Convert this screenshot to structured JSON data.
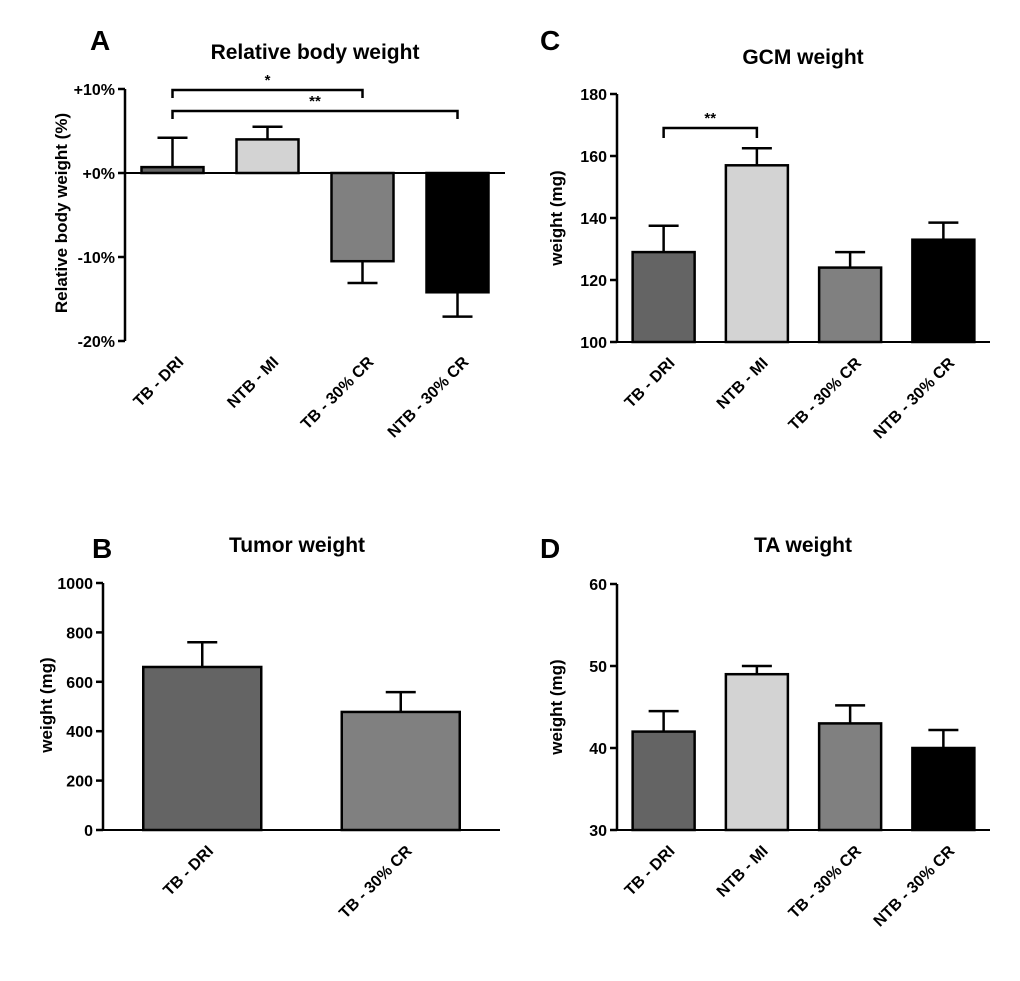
{
  "panels": {
    "A": {
      "panel_letter": "A",
      "title": "Relative body weight",
      "ylabel": "Relative body weight (%)",
      "ticks": [
        {
          "value": 10,
          "label": "+10%"
        },
        {
          "value": 0,
          "label": "+0%"
        },
        {
          "value": -10,
          "label": "-10%"
        },
        {
          "value": -20,
          "label": "-20%"
        }
      ],
      "brackets": [
        {
          "from": 0,
          "to": 2,
          "label": "*"
        },
        {
          "from": 0,
          "to": 3,
          "label": "**"
        }
      ]
    },
    "B": {
      "panel_letter": "B",
      "title": "Tumor weight",
      "ylabel": "weight (mg)",
      "ticks": [
        {
          "value": 1000,
          "label": "1000"
        },
        {
          "value": 800,
          "label": "800"
        },
        {
          "value": 600,
          "label": "600"
        },
        {
          "value": 400,
          "label": "400"
        },
        {
          "value": 200,
          "label": "200"
        },
        {
          "value": 0,
          "label": "0"
        }
      ],
      "brackets": []
    },
    "C": {
      "panel_letter": "C",
      "title": "GCM weight",
      "ylabel": "weight (mg)",
      "ticks": [
        {
          "value": 180,
          "label": "180"
        },
        {
          "value": 160,
          "label": "160"
        },
        {
          "value": 140,
          "label": "140"
        },
        {
          "value": 120,
          "label": "120"
        },
        {
          "value": 100,
          "label": "100"
        }
      ],
      "brackets": [
        {
          "from": 0,
          "to": 1,
          "label": "**"
        }
      ]
    },
    "D": {
      "panel_letter": "D",
      "title": "TA weight",
      "ylabel": "weight (mg)",
      "ticks": [
        {
          "value": 60,
          "label": "60"
        },
        {
          "value": 50,
          "label": "50"
        },
        {
          "value": 40,
          "label": "40"
        },
        {
          "value": 30,
          "label": "30"
        }
      ],
      "brackets": []
    }
  },
  "colors": {
    "TB - DRI": "#646464",
    "NTB - MI": "#d3d3d3",
    "TB - 30% CR": "#808080",
    "NTB - 30% CR": "#000000"
  },
  "chart_data": [
    {
      "panel": "A",
      "type": "bar",
      "title": "Relative body weight",
      "xlabel": "",
      "ylabel": "Relative body weight (%)",
      "ylim": [
        -20,
        10
      ],
      "baseline": 0,
      "categories": [
        "TB - DRI",
        "NTB - MI",
        "TB - 30% CR",
        "NTB - 30% CR"
      ],
      "values": [
        0.7,
        4.0,
        -10.5,
        -14.2
      ],
      "errors": [
        3.5,
        1.5,
        2.6,
        2.9
      ]
    },
    {
      "panel": "B",
      "type": "bar",
      "title": "Tumor weight",
      "xlabel": "",
      "ylabel": "weight (mg)",
      "ylim": [
        0,
        1000
      ],
      "baseline": 0,
      "categories": [
        "TB - DRI",
        "TB - 30% CR"
      ],
      "values": [
        660,
        478
      ],
      "errors": [
        100,
        80
      ]
    },
    {
      "panel": "C",
      "type": "bar",
      "title": "GCM weight",
      "xlabel": "",
      "ylabel": "weight (mg)",
      "ylim": [
        100,
        180
      ],
      "baseline": 100,
      "categories": [
        "TB - DRI",
        "NTB - MI",
        "TB - 30% CR",
        "NTB - 30% CR"
      ],
      "values": [
        129,
        157,
        124,
        133
      ],
      "errors": [
        8.5,
        5.5,
        5,
        5.5
      ]
    },
    {
      "panel": "D",
      "type": "bar",
      "title": "TA weight",
      "xlabel": "",
      "ylabel": "weight (mg)",
      "ylim": [
        30,
        60
      ],
      "baseline": 30,
      "categories": [
        "TB - DRI",
        "NTB - MI",
        "TB - 30% CR",
        "NTB - 30% CR"
      ],
      "values": [
        42,
        49,
        43,
        40
      ],
      "errors": [
        2.5,
        1.0,
        2.2,
        2.2
      ]
    }
  ]
}
